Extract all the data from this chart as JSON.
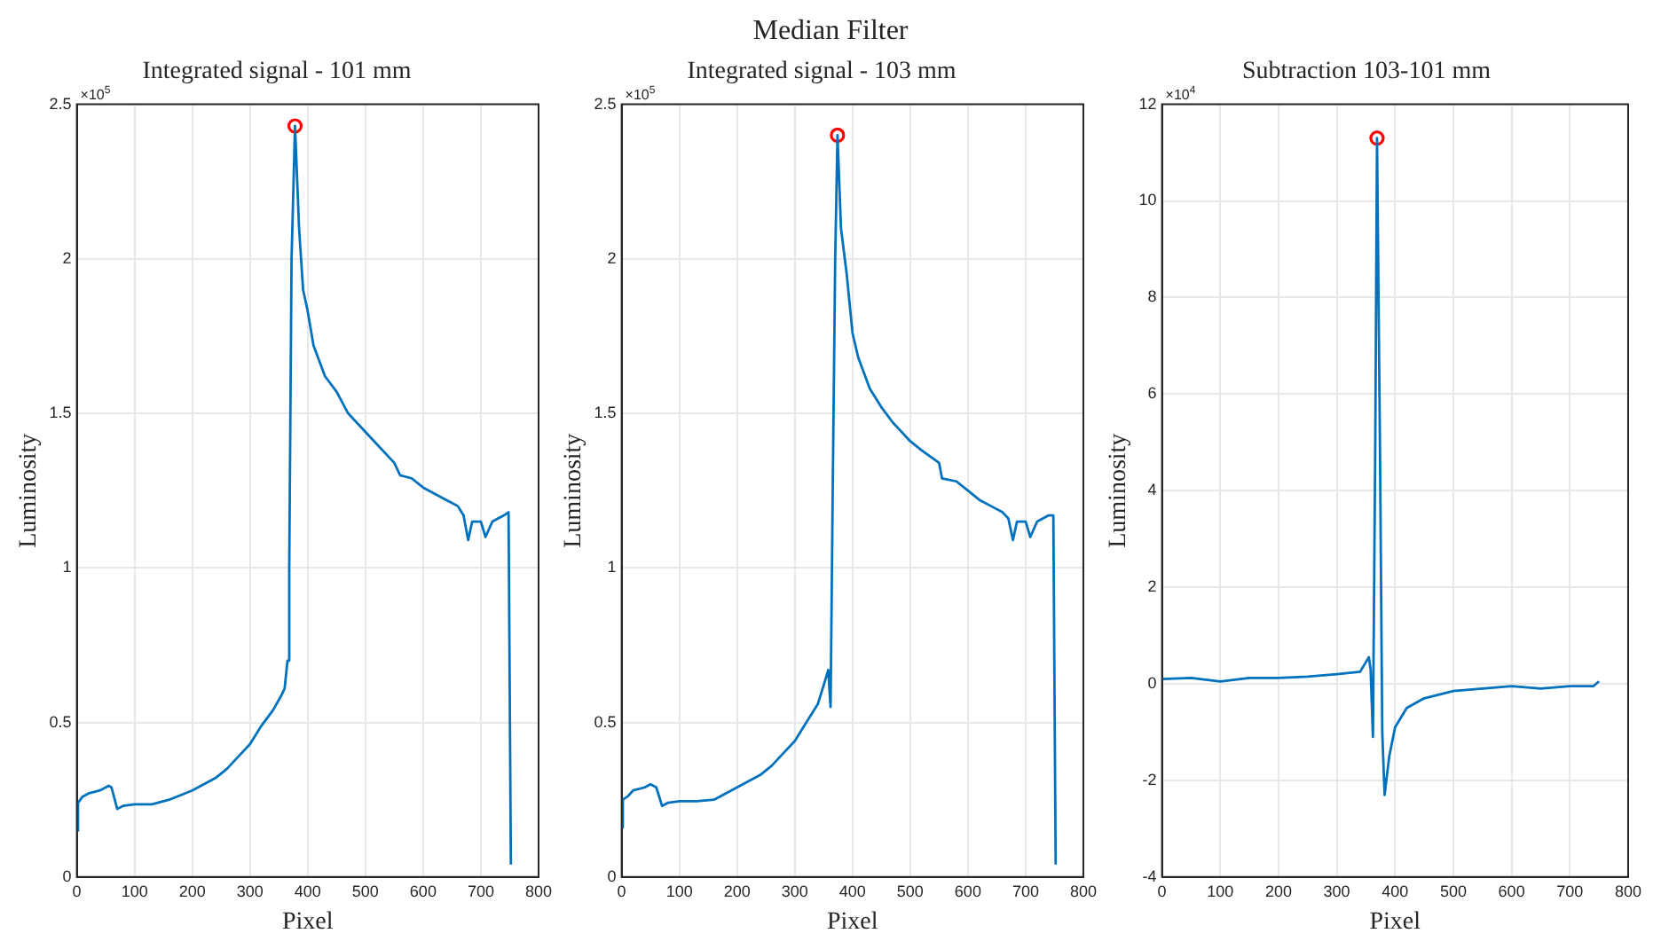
{
  "chart_data": [
    {
      "type": "other",
      "title": "Median Filter"
    },
    {
      "type": "line",
      "title": "Integrated signal - 101 mm",
      "xlabel": "Pixel",
      "ylabel": "Luminosity",
      "annotations": [
        "×10$^{5}$"
      ],
      "xlim": [
        0,
        800
      ],
      "xticks": [
        0,
        100,
        200,
        300,
        400,
        500,
        600,
        700,
        800
      ],
      "ylim": [
        0,
        2.5
      ],
      "yticks": [
        0,
        0.5,
        1,
        1.5,
        2,
        2.5
      ],
      "grid": true,
      "series": [
        {
          "type": "line",
          "color": "#0072bd",
          "marker": "none",
          "x": [
            0,
            2,
            10,
            20,
            40,
            55,
            60,
            70,
            80,
            100,
            130,
            160,
            200,
            240,
            260,
            280,
            300,
            320,
            340,
            355,
            360,
            365,
            368,
            370,
            372,
            378,
            385,
            392,
            400,
            410,
            430,
            450,
            470,
            500,
            520,
            550,
            560,
            580,
            600,
            620,
            640,
            660,
            670,
            678,
            685,
            700,
            708,
            720,
            740,
            748,
            752
          ],
          "values": [
            0.15,
            0.24,
            0.26,
            0.27,
            0.28,
            0.295,
            0.29,
            0.22,
            0.23,
            0.235,
            0.235,
            0.25,
            0.28,
            0.32,
            0.35,
            0.39,
            0.43,
            0.49,
            0.54,
            0.59,
            0.61,
            0.7,
            1.0,
            1.5,
            2.0,
            2.43,
            2.1,
            1.9,
            1.83,
            1.72,
            1.62,
            1.57,
            1.5,
            1.44,
            1.4,
            1.34,
            1.3,
            1.29,
            1.26,
            1.24,
            1.22,
            1.2,
            1.17,
            1.09,
            1.15,
            1.15,
            1.1,
            1.15,
            1.17,
            1.18,
            0.04
          ]
        },
        {
          "type": "scatter",
          "color": "#ff0000",
          "marker": "circle",
          "x": [
            378
          ],
          "values": [
            2.43
          ]
        }
      ]
    },
    {
      "type": "line",
      "title": "Integrated signal - 103 mm",
      "xlabel": "Pixel",
      "ylabel": "Luminosity",
      "annotations": [
        "×10$^{5}$"
      ],
      "xlim": [
        0,
        800
      ],
      "xticks": [
        0,
        100,
        200,
        300,
        400,
        500,
        600,
        700,
        800
      ],
      "ylim": [
        0,
        2.5
      ],
      "yticks": [
        0,
        0.5,
        1,
        1.5,
        2,
        2.5
      ],
      "grid": true,
      "series": [
        {
          "type": "line",
          "color": "#0072bd",
          "marker": "none",
          "x": [
            0,
            2,
            10,
            20,
            40,
            50,
            60,
            70,
            80,
            100,
            130,
            160,
            200,
            240,
            260,
            280,
            300,
            320,
            340,
            350,
            358,
            362,
            366,
            370,
            374,
            380,
            390,
            400,
            410,
            430,
            450,
            470,
            500,
            520,
            550,
            555,
            580,
            600,
            620,
            640,
            660,
            670,
            678,
            685,
            700,
            708,
            720,
            740,
            748,
            752
          ],
          "values": [
            0.16,
            0.25,
            0.26,
            0.28,
            0.29,
            0.3,
            0.29,
            0.23,
            0.24,
            0.245,
            0.245,
            0.25,
            0.29,
            0.33,
            0.36,
            0.4,
            0.44,
            0.5,
            0.56,
            0.62,
            0.67,
            0.55,
            1.3,
            2.0,
            2.4,
            2.1,
            1.95,
            1.76,
            1.68,
            1.58,
            1.52,
            1.47,
            1.41,
            1.38,
            1.34,
            1.29,
            1.28,
            1.25,
            1.22,
            1.2,
            1.18,
            1.16,
            1.09,
            1.15,
            1.15,
            1.1,
            1.15,
            1.17,
            1.17,
            0.04
          ]
        },
        {
          "type": "scatter",
          "color": "#ff0000",
          "marker": "circle",
          "x": [
            374
          ],
          "values": [
            2.4
          ]
        }
      ]
    },
    {
      "type": "line",
      "title": "Subtraction 103-101 mm",
      "xlabel": "Pixel",
      "ylabel": "Luminosity",
      "annotations": [
        "×10$^{4}$"
      ],
      "xlim": [
        0,
        800
      ],
      "xticks": [
        0,
        100,
        200,
        300,
        400,
        500,
        600,
        700,
        800
      ],
      "ylim": [
        -4,
        12
      ],
      "yticks": [
        -4,
        -2,
        0,
        2,
        4,
        6,
        8,
        10,
        12
      ],
      "grid": true,
      "series": [
        {
          "type": "line",
          "color": "#0072bd",
          "marker": "none",
          "x": [
            0,
            50,
            100,
            150,
            200,
            250,
            300,
            340,
            355,
            358,
            362,
            366,
            369,
            374,
            378,
            382,
            390,
            400,
            420,
            450,
            500,
            550,
            600,
            650,
            700,
            740,
            750
          ],
          "values": [
            0.1,
            0.12,
            0.05,
            0.12,
            0.12,
            0.15,
            0.2,
            0.25,
            0.55,
            0.3,
            -1.1,
            5,
            11.3,
            5,
            -1,
            -2.3,
            -1.5,
            -0.9,
            -0.5,
            -0.3,
            -0.15,
            -0.1,
            -0.05,
            -0.1,
            -0.05,
            -0.05,
            0.05
          ]
        },
        {
          "type": "scatter",
          "color": "#ff0000",
          "marker": "circle",
          "x": [
            369
          ],
          "values": [
            11.3
          ]
        }
      ]
    }
  ]
}
